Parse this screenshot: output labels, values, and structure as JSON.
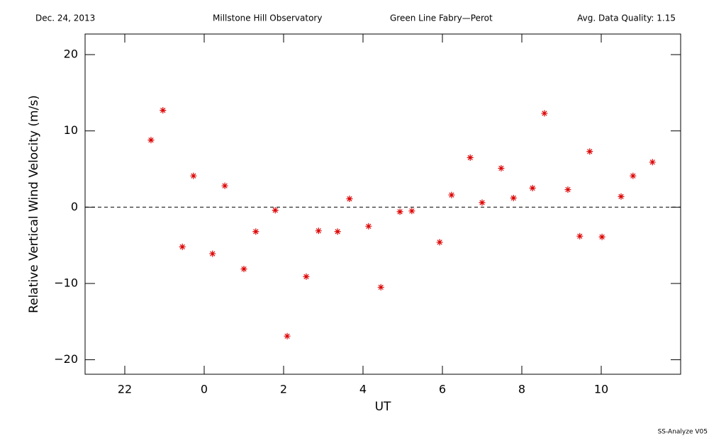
{
  "chart_data": {
    "type": "scatter",
    "date": "Dec. 24, 2013",
    "observatory": "Millstone Hill Observatory",
    "instrument": "Green Line Fabry—Perot",
    "quality": "Avg. Data Quality: 1.15",
    "footer": "SS-Analyze V05",
    "xlabel": "UT",
    "ylabel": "Relative Vertical Wind Velocity (m/s)",
    "color": "#dd0000",
    "reference_line": 0,
    "xlim": [
      21,
      36
    ],
    "ylim": [
      -21.9,
      22.7
    ],
    "xticks": [
      22,
      {
        "value": 24,
        "label": "0"
      },
      {
        "value": 26,
        "label": "2"
      },
      {
        "value": 28,
        "label": "4"
      },
      {
        "value": 30,
        "label": "6"
      },
      {
        "value": 32,
        "label": "8"
      },
      {
        "value": 34,
        "label": "10"
      }
    ],
    "yticks": [
      {
        "value": -20,
        "label": "−20"
      },
      {
        "value": -10,
        "label": "−10"
      },
      0,
      10,
      20
    ],
    "x": [
      22.66,
      22.96,
      23.45,
      23.73,
      24.21,
      24.52,
      25.0,
      25.3,
      25.79,
      26.09,
      26.57,
      26.88,
      27.36,
      27.66,
      28.14,
      28.45,
      28.93,
      29.23,
      29.93,
      30.23,
      30.7,
      31.0,
      31.48,
      31.79,
      32.27,
      32.57,
      33.16,
      33.46,
      33.71,
      34.02,
      34.5,
      34.8,
      35.29
    ],
    "values": [
      8.8,
      12.7,
      -5.2,
      4.1,
      -6.1,
      2.8,
      -8.1,
      -3.2,
      -0.4,
      -16.9,
      -9.1,
      -3.1,
      -3.2,
      1.1,
      -2.5,
      -10.5,
      -0.6,
      -0.5,
      -4.6,
      1.6,
      6.5,
      0.6,
      5.1,
      1.2,
      2.5,
      12.3,
      2.3,
      -3.8,
      7.3,
      -3.9,
      1.4,
      4.1,
      5.9
    ]
  }
}
